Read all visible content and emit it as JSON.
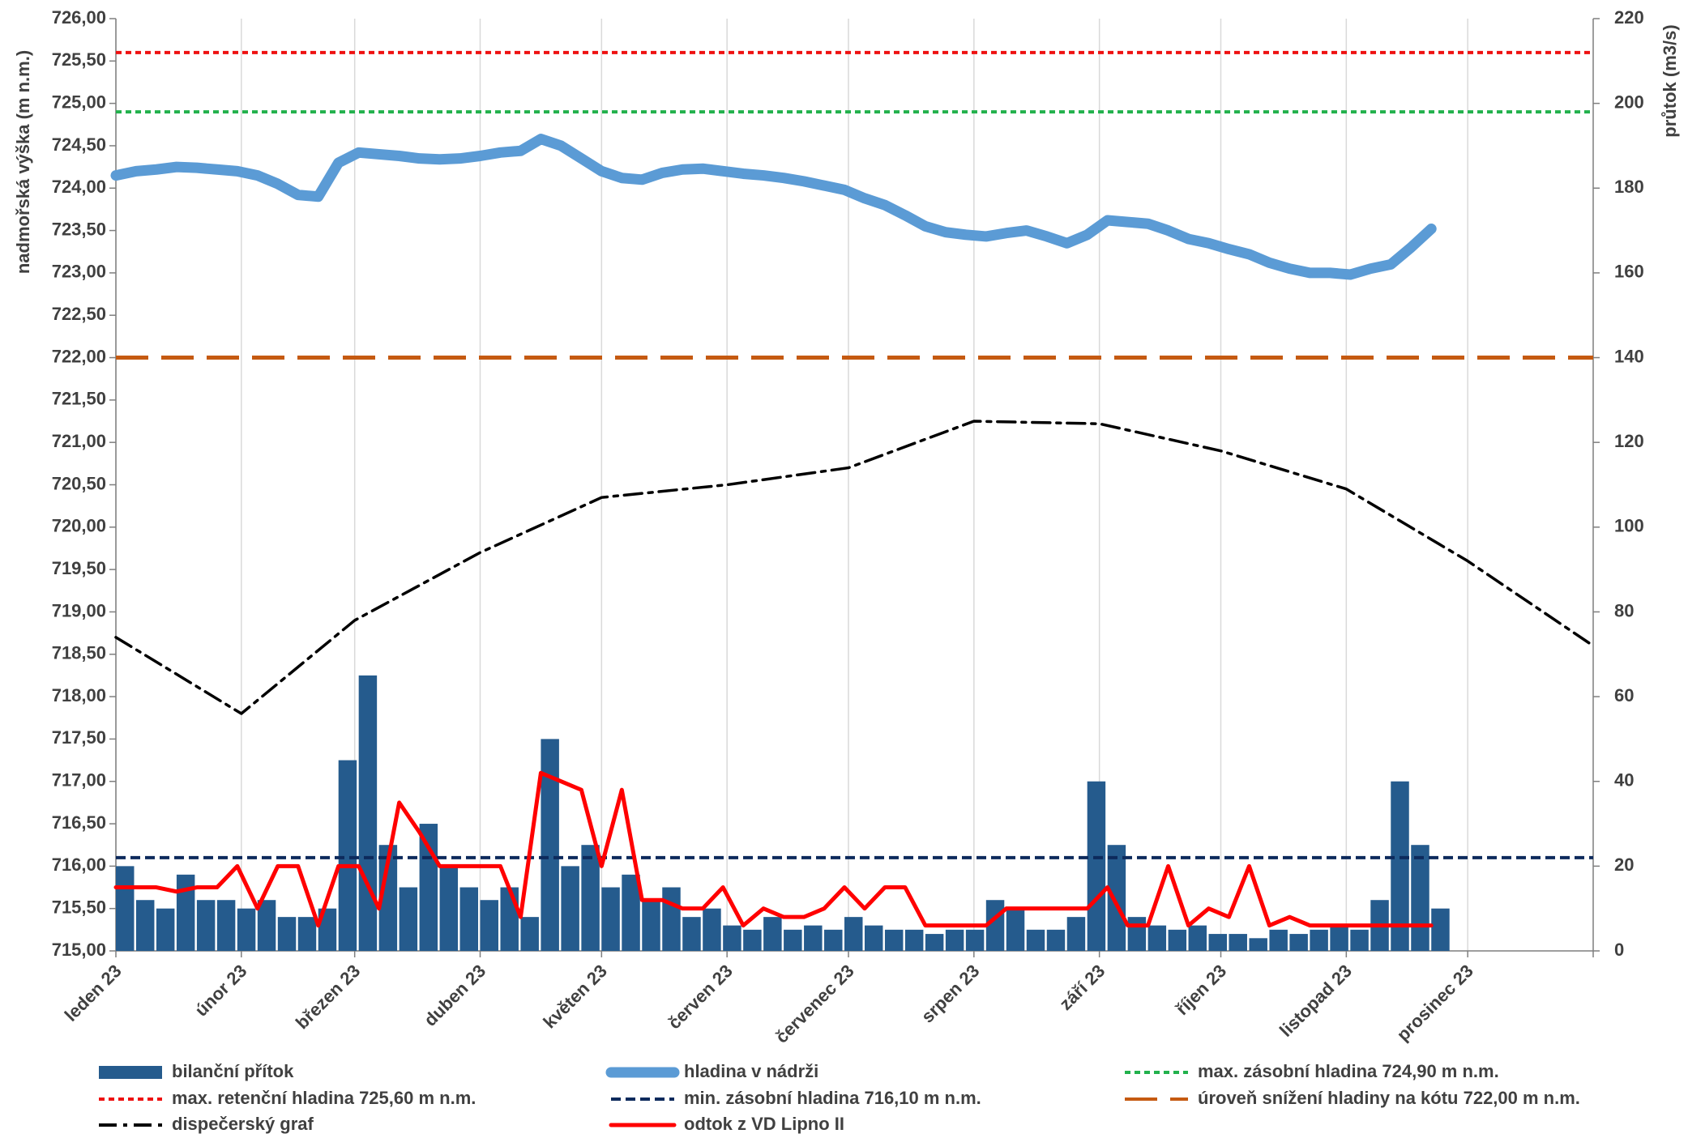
{
  "chart_data": {
    "type": "combo",
    "y_label": "nadmořská výška (m n.m.)",
    "y2_label": "průtok (m3/s)",
    "grid": "x",
    "xlim": [
      0,
      365
    ],
    "xticks": [
      {
        "value": 0,
        "label": "leden 23"
      },
      {
        "value": 31,
        "label": "únor 23"
      },
      {
        "value": 59,
        "label": "březen 23"
      },
      {
        "value": 90,
        "label": "duben 23"
      },
      {
        "value": 120,
        "label": "květen 23"
      },
      {
        "value": 151,
        "label": "červen 23"
      },
      {
        "value": 181,
        "label": "červenec 23"
      },
      {
        "value": 212,
        "label": "srpen 23"
      },
      {
        "value": 243,
        "label": "září 23"
      },
      {
        "value": 273,
        "label": "říjen 23"
      },
      {
        "value": 304,
        "label": "listopad 23"
      },
      {
        "value": 334,
        "label": "prosinec 23"
      }
    ],
    "ylim": [
      715,
      726
    ],
    "yticks": [
      {
        "value": 715,
        "label": "715,00"
      },
      {
        "value": 715.5,
        "label": "715,50"
      },
      {
        "value": 716,
        "label": "716,00"
      },
      {
        "value": 716.5,
        "label": "716,50"
      },
      {
        "value": 717,
        "label": "717,00"
      },
      {
        "value": 717.5,
        "label": "717,50"
      },
      {
        "value": 718,
        "label": "718,00"
      },
      {
        "value": 718.5,
        "label": "718,50"
      },
      {
        "value": 719,
        "label": "719,00"
      },
      {
        "value": 719.5,
        "label": "719,50"
      },
      {
        "value": 720,
        "label": "720,00"
      },
      {
        "value": 720.5,
        "label": "720,50"
      },
      {
        "value": 721,
        "label": "721,00"
      },
      {
        "value": 721.5,
        "label": "721,50"
      },
      {
        "value": 722,
        "label": "722,00"
      },
      {
        "value": 722.5,
        "label": "722,50"
      },
      {
        "value": 723,
        "label": "723,00"
      },
      {
        "value": 723.5,
        "label": "723,50"
      },
      {
        "value": 724,
        "label": "724,00"
      },
      {
        "value": 724.5,
        "label": "724,50"
      },
      {
        "value": 725,
        "label": "725,00"
      },
      {
        "value": 725.5,
        "label": "725,50"
      },
      {
        "value": 726,
        "label": "726,00"
      }
    ],
    "y2lim": [
      0,
      220
    ],
    "y2ticks": [
      0,
      20,
      40,
      60,
      80,
      100,
      120,
      140,
      160,
      180,
      200,
      220
    ],
    "x": [
      0,
      5,
      10,
      15,
      20,
      25,
      30,
      35,
      40,
      45,
      50,
      55,
      60,
      65,
      70,
      75,
      80,
      85,
      90,
      95,
      100,
      105,
      110,
      115,
      120,
      125,
      130,
      135,
      140,
      145,
      150,
      155,
      160,
      165,
      170,
      175,
      180,
      185,
      190,
      195,
      200,
      205,
      210,
      215,
      220,
      225,
      230,
      235,
      240,
      245,
      250,
      255,
      260,
      265,
      270,
      275,
      280,
      285,
      290,
      295,
      300,
      305,
      310,
      315,
      320,
      325
    ],
    "series": [
      {
        "name": "bilanční přítok",
        "type": "bar",
        "axis": "y2",
        "color": "#255b8d",
        "values": [
          20,
          12,
          10,
          18,
          12,
          12,
          10,
          12,
          8,
          8,
          10,
          45,
          65,
          25,
          15,
          30,
          20,
          15,
          12,
          15,
          8,
          50,
          20,
          25,
          15,
          18,
          12,
          15,
          8,
          10,
          6,
          5,
          8,
          5,
          6,
          5,
          8,
          6,
          5,
          5,
          4,
          5,
          5,
          12,
          10,
          5,
          5,
          8,
          40,
          25,
          8,
          6,
          5,
          6,
          4,
          4,
          3,
          5,
          4,
          5,
          6,
          5,
          12,
          40,
          25,
          10
        ]
      },
      {
        "name": "hladina v nádrži",
        "type": "line",
        "color": "#5b9bd5",
        "values": [
          724.15,
          724.2,
          724.22,
          724.25,
          724.24,
          724.22,
          724.2,
          724.15,
          724.05,
          723.92,
          723.9,
          724.3,
          724.42,
          724.4,
          724.38,
          724.35,
          724.34,
          724.35,
          724.38,
          724.42,
          724.44,
          724.58,
          724.5,
          724.35,
          724.2,
          724.12,
          724.1,
          724.18,
          724.22,
          724.23,
          724.2,
          724.17,
          724.15,
          724.12,
          724.08,
          724.03,
          723.98,
          723.88,
          723.8,
          723.68,
          723.55,
          723.48,
          723.45,
          723.43,
          723.47,
          723.5,
          723.43,
          723.35,
          723.45,
          723.62,
          723.6,
          723.58,
          723.5,
          723.4,
          723.35,
          723.28,
          723.22,
          723.12,
          723.05,
          723,
          723,
          722.98,
          723.05,
          723.1,
          723.3,
          723.52
        ]
      },
      {
        "name": "odtok z VD Lipno II",
        "type": "line",
        "axis": "y2",
        "color": "#ff0000",
        "values": [
          15,
          15,
          15,
          14,
          15,
          15,
          20,
          10,
          20,
          20,
          6,
          20,
          20,
          10,
          35,
          28,
          20,
          20,
          20,
          20,
          8,
          42,
          40,
          38,
          20,
          38,
          12,
          12,
          10,
          10,
          15,
          6,
          10,
          8,
          8,
          10,
          15,
          10,
          15,
          15,
          6,
          6,
          6,
          6,
          10,
          10,
          10,
          10,
          10,
          15,
          6,
          6,
          20,
          6,
          10,
          8,
          20,
          6,
          8,
          6,
          6,
          6,
          6,
          6,
          6,
          6
        ]
      },
      {
        "name": "dispečerský graf",
        "type": "line",
        "color": "#000000",
        "style": "dashdot",
        "x": [
          0,
          31,
          59,
          90,
          120,
          151,
          181,
          212,
          243,
          273,
          304,
          334,
          365
        ],
        "values": [
          718.7,
          717.8,
          718.9,
          719.7,
          720.35,
          720.5,
          720.7,
          721.25,
          721.22,
          720.9,
          720.45,
          719.6,
          718.6
        ]
      }
    ],
    "ref_lines": [
      {
        "name": "max. zásobní hladina 724,90 m n.m.",
        "value": 724.9,
        "color": "#22b14c",
        "style": "dotted"
      },
      {
        "name": "max. retenční hladina 725,60 m n.m.",
        "value": 725.6,
        "color": "#ee1111",
        "style": "dotted"
      },
      {
        "name": "min. zásobní hladina 716,10 m n.m.",
        "value": 716.1,
        "color": "#0d2a5c",
        "style": "dashed"
      },
      {
        "name": "úroveň snížení hladiny na kótu 722,00 m n.m.",
        "value": 722,
        "color": "#c55a11",
        "style": "longdash"
      }
    ]
  }
}
